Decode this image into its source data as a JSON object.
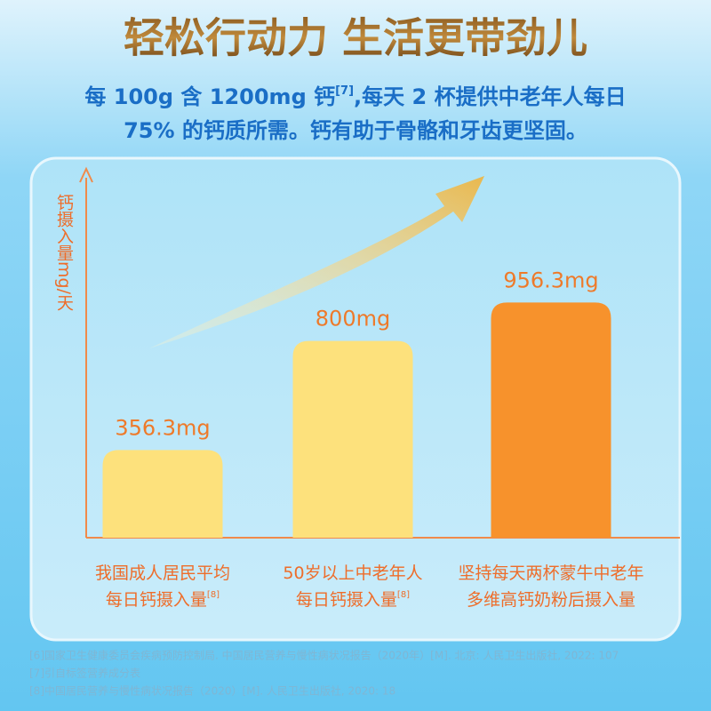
{
  "chart_data": {
    "type": "bar",
    "title": "轻松行动力 生活更带劲儿",
    "subtitle": [
      "每 100g 含 1200mg 钙",
      "[7]",
      ",每天 2 杯提供中老年人每日",
      "75% 的钙质所需。钙有助于骨骼和牙齿更坚固。"
    ],
    "y_label": "钙摄入量mg/天",
    "categories": [
      [
        "我国成人居民平均",
        "每日钙摄入量"
      ],
      [
        "50岁以上中老年人",
        "每日钙摄入量"
      ],
      [
        "坚持每天两杯蒙牛中老年",
        "多维高钙奶粉后摄入量"
      ]
    ],
    "category_notes": [
      "[8]",
      "[8]",
      null
    ],
    "values": [
      356.3,
      800,
      956.3
    ],
    "value_labels": [
      "356.3mg",
      "800mg",
      "956.3mg"
    ],
    "colors": [
      "#fde17c",
      "#fde17c",
      "#f7922c"
    ],
    "ylim": [
      0,
      1500
    ],
    "footnotes": [
      "[6]国家卫生健康委员会疾病预防控制局. 中国居民营养与慢性病状况报告（2020年）[M]. 北京: 人民卫生出版社, 2022: 107",
      "[7]引自标签营养成分表",
      "[8]中国居民营养与慢性病状况报告（2020）[M]. 人民卫生出版社, 2020: 18"
    ]
  }
}
